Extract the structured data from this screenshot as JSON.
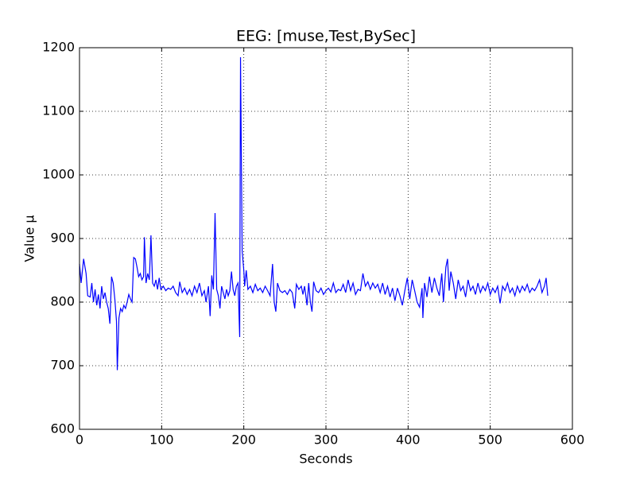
{
  "chart_data": {
    "type": "line",
    "title": "EEG: [muse,Test,BySec]",
    "x_label": "Seconds",
    "y_label": "Value μ",
    "xlim": [
      0,
      600
    ],
    "xticks": [
      0,
      100,
      200,
      300,
      400,
      500,
      600
    ],
    "ylim": [
      600,
      1200
    ],
    "yticks": [
      600,
      700,
      800,
      900,
      1000,
      1100,
      1200
    ],
    "grid": true,
    "x": [
      0,
      2,
      5,
      8,
      10,
      13,
      15,
      17,
      19,
      21,
      23,
      25,
      27,
      29,
      31,
      33,
      35,
      37,
      39,
      41,
      43,
      45,
      46,
      48,
      50,
      52,
      54,
      56,
      58,
      60,
      62,
      64,
      66,
      68,
      70,
      72,
      74,
      76,
      78,
      79,
      81,
      83,
      85,
      87,
      89,
      91,
      93,
      95,
      97,
      99,
      102,
      105,
      108,
      111,
      114,
      117,
      120,
      122,
      125,
      128,
      131,
      134,
      137,
      140,
      143,
      146,
      149,
      152,
      154,
      157,
      159,
      161,
      163,
      165,
      167,
      169,
      171,
      173,
      175,
      177,
      179,
      181,
      183,
      185,
      187,
      189,
      191,
      193,
      195,
      196,
      198,
      200,
      201,
      203,
      205,
      208,
      211,
      214,
      217,
      220,
      223,
      226,
      229,
      232,
      235,
      237,
      239,
      241,
      244,
      247,
      250,
      253,
      256,
      259,
      262,
      264,
      267,
      270,
      272,
      274,
      277,
      279,
      281,
      283,
      285,
      288,
      291,
      294,
      297,
      300,
      303,
      306,
      309,
      312,
      315,
      318,
      321,
      324,
      327,
      330,
      333,
      336,
      339,
      342,
      345,
      348,
      351,
      354,
      357,
      360,
      363,
      366,
      369,
      372,
      375,
      378,
      381,
      384,
      387,
      390,
      393,
      396,
      399,
      402,
      405,
      408,
      411,
      414,
      417,
      418,
      420,
      423,
      426,
      429,
      432,
      435,
      438,
      441,
      443,
      446,
      448,
      450,
      452,
      455,
      458,
      461,
      464,
      467,
      470,
      473,
      476,
      479,
      482,
      485,
      488,
      491,
      494,
      497,
      500,
      503,
      506,
      509,
      512,
      515,
      518,
      521,
      524,
      527,
      530,
      533,
      536,
      539,
      542,
      545,
      548,
      551,
      554,
      557,
      560,
      563,
      566,
      568,
      570
    ],
    "series": [
      {
        "name": "EEG",
        "color": "#0000ff",
        "values": [
          860,
          830,
          868,
          845,
          810,
          808,
          830,
          800,
          820,
          795,
          812,
          790,
          825,
          805,
          815,
          800,
          790,
          766,
          840,
          830,
          805,
          770,
          693,
          775,
          790,
          785,
          795,
          790,
          800,
          812,
          805,
          800,
          870,
          868,
          855,
          840,
          845,
          835,
          840,
          902,
          830,
          845,
          835,
          905,
          830,
          825,
          835,
          820,
          838,
          820,
          825,
          818,
          822,
          820,
          825,
          815,
          810,
          832,
          815,
          822,
          812,
          820,
          810,
          825,
          815,
          830,
          810,
          818,
          800,
          825,
          778,
          842,
          820,
          940,
          820,
          810,
          790,
          825,
          815,
          805,
          820,
          810,
          818,
          848,
          820,
          810,
          825,
          830,
          745,
          1185,
          880,
          850,
          825,
          850,
          820,
          825,
          815,
          828,
          818,
          822,
          815,
          825,
          818,
          810,
          860,
          800,
          785,
          830,
          818,
          815,
          818,
          812,
          820,
          815,
          790,
          828,
          820,
          825,
          812,
          825,
          795,
          830,
          800,
          785,
          832,
          818,
          815,
          822,
          812,
          818,
          822,
          816,
          830,
          815,
          820,
          818,
          828,
          815,
          835,
          818,
          830,
          812,
          820,
          818,
          845,
          825,
          832,
          820,
          830,
          822,
          828,
          815,
          830,
          812,
          825,
          808,
          822,
          802,
          822,
          810,
          795,
          818,
          838,
          805,
          835,
          818,
          800,
          792,
          822,
          775,
          830,
          808,
          840,
          815,
          838,
          822,
          810,
          845,
          800,
          855,
          868,
          818,
          848,
          830,
          805,
          835,
          818,
          825,
          808,
          835,
          818,
          825,
          812,
          830,
          815,
          825,
          818,
          830,
          812,
          822,
          815,
          825,
          798,
          825,
          818,
          830,
          815,
          822,
          810,
          825,
          815,
          825,
          818,
          828,
          815,
          822,
          818,
          825,
          835,
          815,
          825,
          838,
          810
        ]
      }
    ]
  }
}
